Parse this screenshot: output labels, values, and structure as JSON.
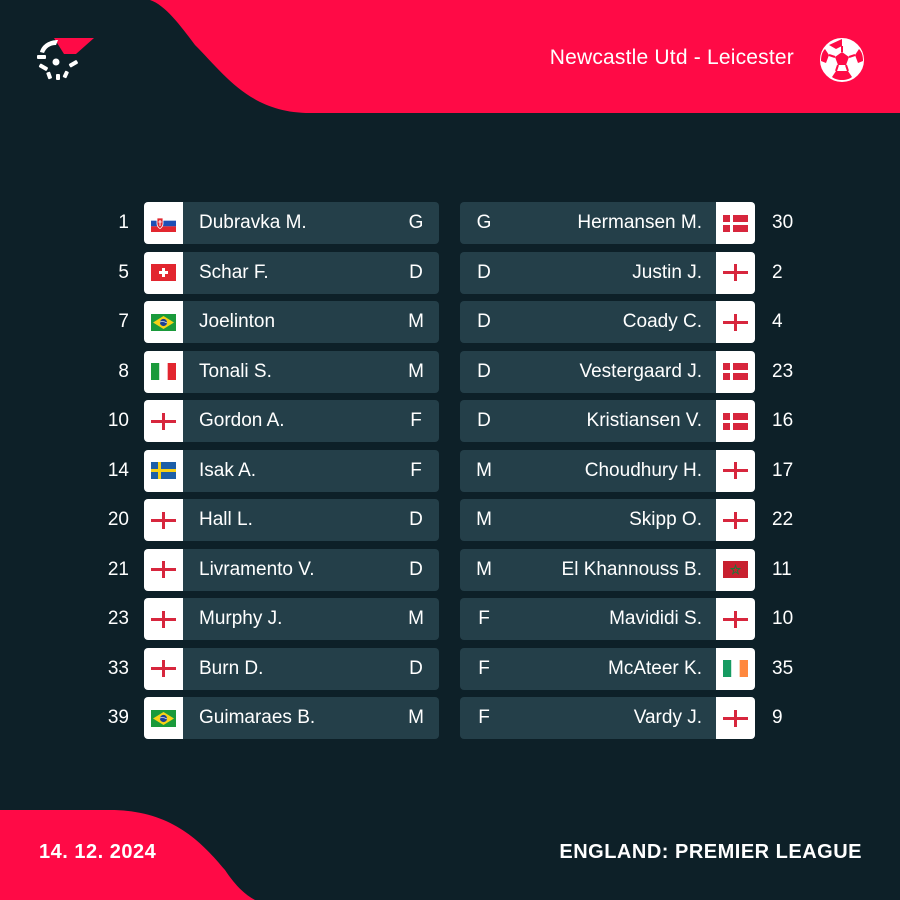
{
  "header": {
    "match": "Newcastle Utd - Leicester",
    "logo_icon": "flashscore-logo-icon",
    "sport_icon": "football-icon"
  },
  "footer": {
    "date": "14. 12. 2024",
    "league": "ENGLAND: PREMIER LEAGUE"
  },
  "colors": {
    "background": "#0d2028",
    "accent": "#ff0a46",
    "card": "#243f49"
  },
  "home": {
    "team": "Newcastle Utd",
    "players": [
      {
        "number": "1",
        "name": "Dubravka M.",
        "position": "G",
        "flag": "slovakia"
      },
      {
        "number": "5",
        "name": "Schar F.",
        "position": "D",
        "flag": "switzerland"
      },
      {
        "number": "7",
        "name": "Joelinton",
        "position": "M",
        "flag": "brazil"
      },
      {
        "number": "8",
        "name": "Tonali S.",
        "position": "M",
        "flag": "italy"
      },
      {
        "number": "10",
        "name": "Gordon A.",
        "position": "F",
        "flag": "england"
      },
      {
        "number": "14",
        "name": "Isak A.",
        "position": "F",
        "flag": "sweden"
      },
      {
        "number": "20",
        "name": "Hall L.",
        "position": "D",
        "flag": "england"
      },
      {
        "number": "21",
        "name": "Livramento V.",
        "position": "D",
        "flag": "england"
      },
      {
        "number": "23",
        "name": "Murphy J.",
        "position": "M",
        "flag": "england"
      },
      {
        "number": "33",
        "name": "Burn D.",
        "position": "D",
        "flag": "england"
      },
      {
        "number": "39",
        "name": "Guimaraes B.",
        "position": "M",
        "flag": "brazil"
      }
    ]
  },
  "away": {
    "team": "Leicester",
    "players": [
      {
        "number": "30",
        "name": "Hermansen M.",
        "position": "G",
        "flag": "denmark"
      },
      {
        "number": "2",
        "name": "Justin J.",
        "position": "D",
        "flag": "england"
      },
      {
        "number": "4",
        "name": "Coady C.",
        "position": "D",
        "flag": "england"
      },
      {
        "number": "23",
        "name": "Vestergaard J.",
        "position": "D",
        "flag": "denmark"
      },
      {
        "number": "16",
        "name": "Kristiansen V.",
        "position": "D",
        "flag": "denmark"
      },
      {
        "number": "17",
        "name": "Choudhury H.",
        "position": "M",
        "flag": "england"
      },
      {
        "number": "22",
        "name": "Skipp O.",
        "position": "M",
        "flag": "england"
      },
      {
        "number": "11",
        "name": "El Khannouss B.",
        "position": "M",
        "flag": "morocco"
      },
      {
        "number": "10",
        "name": "Mavididi S.",
        "position": "F",
        "flag": "england"
      },
      {
        "number": "35",
        "name": "McAteer K.",
        "position": "F",
        "flag": "ireland"
      },
      {
        "number": "9",
        "name": "Vardy J.",
        "position": "F",
        "flag": "england"
      }
    ]
  }
}
